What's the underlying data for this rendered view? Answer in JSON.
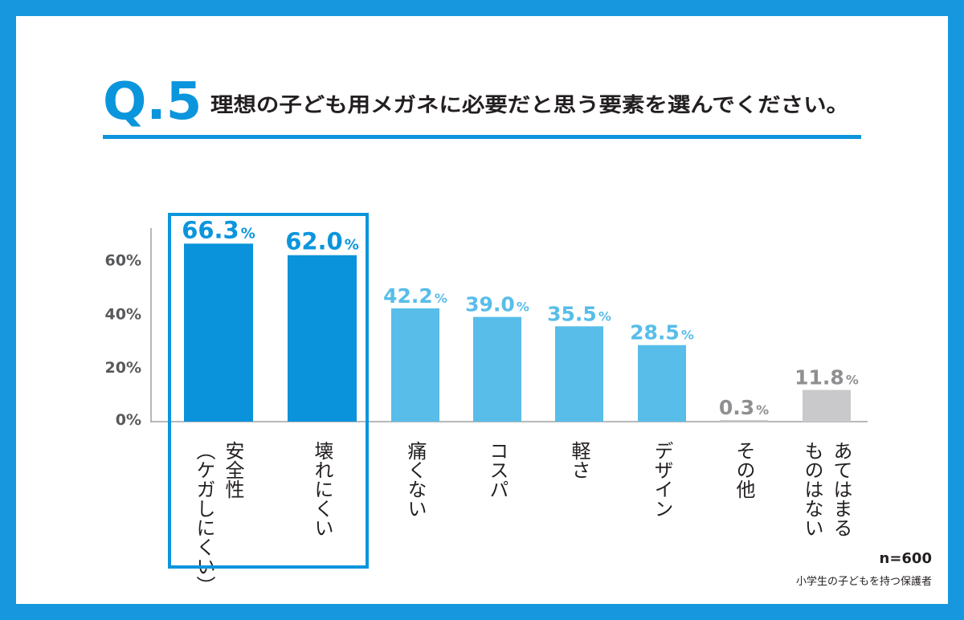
{
  "chart_data": {
    "type": "bar",
    "question_number": "Q.5",
    "title": "理想の子ども用メガネに必要だと思う要素を選んでください。",
    "categories": [
      [
        "安全性",
        "（ケガしにくい）"
      ],
      [
        "壊れにくい"
      ],
      [
        "痛くない"
      ],
      [
        "コスパ"
      ],
      [
        "軽さ"
      ],
      [
        "デザイン"
      ],
      [
        "その他"
      ],
      [
        "あてはまる",
        "ものはない"
      ]
    ],
    "values": [
      66.3,
      62.0,
      42.2,
      39.0,
      35.5,
      28.5,
      0.3,
      11.8
    ],
    "value_labels": [
      "66.3",
      "62.0",
      "42.2",
      "39.0",
      "35.5",
      "28.5",
      "0.3",
      "11.8"
    ],
    "value_unit": "%",
    "highlighted_categories": [
      0,
      1
    ],
    "y_ticks": [
      {
        "value": 0,
        "label": "0%"
      },
      {
        "value": 20,
        "label": "20%"
      },
      {
        "value": 40,
        "label": "40%"
      },
      {
        "value": 60,
        "label": "60%"
      }
    ],
    "ylim": [
      0,
      70
    ],
    "xlabel": "",
    "ylabel": "",
    "sample_size": "n=600",
    "respondents": "小学生の子どもを持つ保護者"
  },
  "colors": {
    "frame": "#1797de",
    "accent": "#0b95dc",
    "bar_highlight": "#0a93da",
    "bar_regular": "#58bde9",
    "bar_other": "#c9c9cc",
    "label_other": "#8f8f92",
    "text": "#231f20",
    "axis_text": "#58595b"
  }
}
